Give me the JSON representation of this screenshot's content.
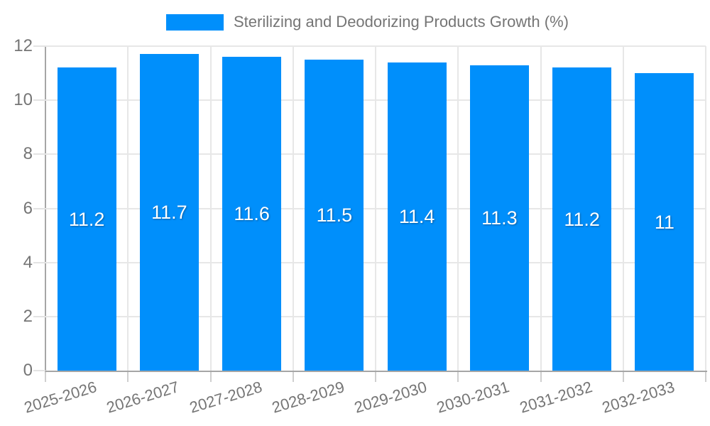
{
  "legend": {
    "label": "Sterilizing and Deodorizing Products Growth (%)",
    "swatch_color": "#008FFB"
  },
  "chart_data": {
    "type": "bar",
    "title": "Sterilizing and Deodorizing Products Growth (%)",
    "categories": [
      "2025-2026",
      "2026-2027",
      "2027-2028",
      "2028-2029",
      "2029-2030",
      "2030-2031",
      "2031-2032",
      "2032-2033"
    ],
    "values": [
      11.2,
      11.7,
      11.6,
      11.5,
      11.4,
      11.3,
      11.2,
      11
    ],
    "value_labels": [
      "11.2",
      "11.7",
      "11.6",
      "11.5",
      "11.4",
      "11.3",
      "11.2",
      "11"
    ],
    "xlabel": "",
    "ylabel": "",
    "ylim": [
      0,
      12
    ],
    "yticks": [
      0,
      2,
      4,
      6,
      8,
      10,
      12
    ],
    "grid": true,
    "legend_position": "top",
    "bar_color": "#008FFB",
    "value_label_color": "#ffffff",
    "axis_text_color": "#757575",
    "gridline_color": "#e7e7e7",
    "axis_line_color": "#a6a6a6"
  }
}
